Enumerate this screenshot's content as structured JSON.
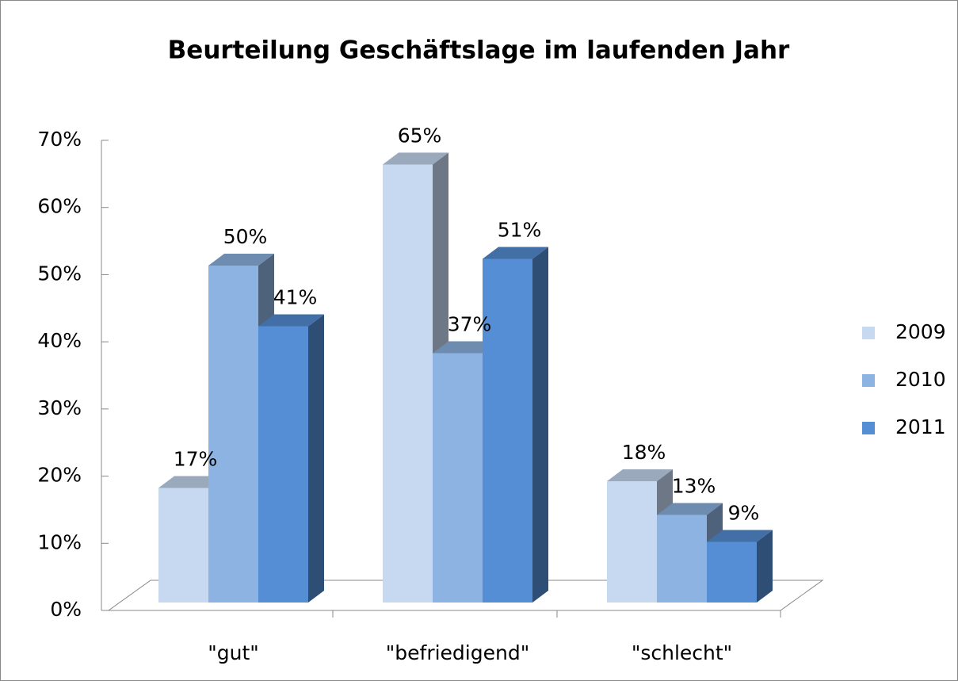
{
  "chart_data": {
    "type": "bar3d",
    "title": "Beurteilung Geschäftslage im laufenden Jahr",
    "categories": [
      "\"gut\"",
      "\"befriedigend\"",
      "\"schlecht\""
    ],
    "series": [
      {
        "name": "2009",
        "color": "#c6d9f1",
        "values": [
          17,
          65,
          18
        ],
        "value_labels": [
          "17%",
          "65%",
          "18%"
        ]
      },
      {
        "name": "2010",
        "color": "#8db3e2",
        "values": [
          50,
          37,
          13
        ],
        "value_labels": [
          "50%",
          "37%",
          "13%"
        ]
      },
      {
        "name": "2011",
        "color": "#558ed5",
        "values": [
          41,
          51,
          9
        ],
        "value_labels": [
          "41%",
          "51%",
          "9%"
        ]
      }
    ],
    "ylim": [
      0,
      70
    ],
    "yticks": [
      {
        "value": 0,
        "label": "0%"
      },
      {
        "value": 10,
        "label": "10%"
      },
      {
        "value": 20,
        "label": "20%"
      },
      {
        "value": 30,
        "label": "30%"
      },
      {
        "value": 40,
        "label": "40%"
      },
      {
        "value": 50,
        "label": "50%"
      },
      {
        "value": 60,
        "label": "60%"
      },
      {
        "value": 70,
        "label": "70%"
      }
    ],
    "legend": "right"
  }
}
